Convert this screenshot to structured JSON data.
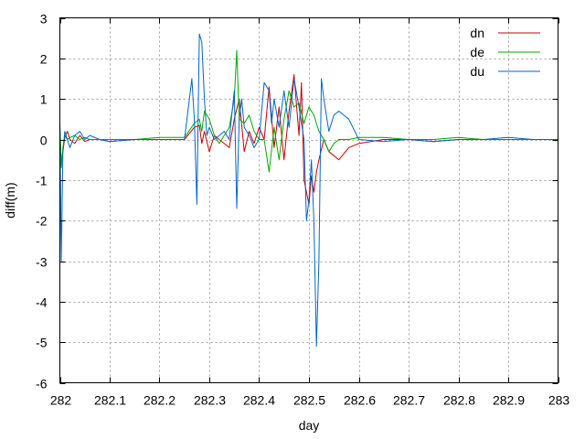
{
  "chart_data": {
    "type": "line",
    "title": "",
    "xlabel": "day",
    "ylabel": "diff(m)",
    "xlim": [
      282,
      283
    ],
    "ylim": [
      -6,
      3
    ],
    "grid": true,
    "legend_position": "top-right",
    "x_ticks": [
      282,
      282.1,
      282.2,
      282.3,
      282.4,
      282.5,
      282.6,
      282.7,
      282.8,
      282.9,
      283
    ],
    "x_tick_labels": [
      "282",
      "282.1",
      "282.2",
      "282.3",
      "282.4",
      "282.5",
      "282.6",
      "282.7",
      "282.8",
      "282.9",
      "283"
    ],
    "y_ticks": [
      3,
      2,
      1,
      0,
      -1,
      -2,
      -3,
      -4,
      -5,
      -6
    ],
    "y_tick_labels": [
      "3",
      "2",
      "1",
      "0",
      "-1",
      "-2",
      "-3",
      "-4",
      "-5",
      "-6"
    ],
    "series": [
      {
        "name": "dn",
        "color": "#cc0000",
        "x": [
          282.0,
          282.003,
          282.006,
          282.01,
          282.015,
          282.02,
          282.03,
          282.04,
          282.05,
          282.06,
          282.08,
          282.1,
          282.15,
          282.2,
          282.25,
          282.27,
          282.28,
          282.285,
          282.29,
          282.3,
          282.31,
          282.32,
          282.34,
          282.35,
          282.36,
          282.37,
          282.38,
          282.39,
          282.4,
          282.41,
          282.42,
          282.43,
          282.44,
          282.45,
          282.46,
          282.47,
          282.48,
          282.485,
          282.49,
          282.5,
          282.505,
          282.51,
          282.515,
          282.52,
          282.53,
          282.54,
          282.55,
          282.56,
          282.58,
          282.6,
          282.65,
          282.7,
          282.75,
          282.8,
          282.85,
          282.9,
          282.95,
          283.0
        ],
        "y": [
          0.2,
          -0.6,
          -0.3,
          0.05,
          0.2,
          0.0,
          -0.1,
          0.1,
          -0.05,
          0.0,
          0.0,
          -0.05,
          0.0,
          0.0,
          0.0,
          0.3,
          0.35,
          -0.1,
          0.2,
          -0.3,
          0.1,
          0.0,
          -0.2,
          0.5,
          1.0,
          -0.3,
          0.2,
          -0.1,
          0.3,
          0.0,
          1.3,
          -0.2,
          0.8,
          -0.5,
          0.7,
          1.6,
          0.1,
          1.4,
          -1.0,
          -1.6,
          -0.9,
          -1.3,
          -0.8,
          -0.5,
          0.0,
          -0.3,
          -0.4,
          -0.5,
          -0.2,
          -0.1,
          0.0,
          0.0,
          -0.05,
          0.0,
          0.0,
          0.0,
          0.0,
          0.0
        ]
      },
      {
        "name": "de",
        "color": "#00aa00",
        "x": [
          282.0,
          282.003,
          282.006,
          282.01,
          282.015,
          282.02,
          282.03,
          282.04,
          282.05,
          282.06,
          282.08,
          282.1,
          282.15,
          282.2,
          282.25,
          282.27,
          282.28,
          282.285,
          282.29,
          282.3,
          282.31,
          282.32,
          282.34,
          282.35,
          282.355,
          282.36,
          282.37,
          282.38,
          282.39,
          282.4,
          282.41,
          282.42,
          282.43,
          282.44,
          282.45,
          282.46,
          282.47,
          282.48,
          282.49,
          282.5,
          282.51,
          282.52,
          282.53,
          282.54,
          282.55,
          282.56,
          282.58,
          282.6,
          282.65,
          282.7,
          282.75,
          282.8,
          282.85,
          282.9,
          282.95,
          283.0
        ],
        "y": [
          0.4,
          -0.7,
          -0.2,
          0.1,
          0.0,
          0.05,
          0.1,
          0.0,
          0.05,
          0.0,
          0.0,
          0.0,
          0.0,
          0.05,
          0.05,
          0.4,
          0.5,
          0.2,
          0.7,
          0.5,
          0.1,
          -0.1,
          0.3,
          1.0,
          2.2,
          0.5,
          0.4,
          0.6,
          0.2,
          0.0,
          0.0,
          -0.8,
          0.3,
          -0.5,
          0.5,
          1.2,
          0.8,
          0.9,
          0.4,
          0.8,
          0.6,
          0.2,
          0.0,
          -0.3,
          -0.1,
          0.0,
          0.0,
          0.05,
          0.05,
          0.0,
          0.0,
          0.05,
          0.0,
          0.0,
          0.0,
          0.0
        ]
      },
      {
        "name": "du",
        "color": "#0066cc",
        "x": [
          282.0,
          282.003,
          282.006,
          282.01,
          282.02,
          282.03,
          282.04,
          282.05,
          282.06,
          282.08,
          282.1,
          282.15,
          282.2,
          282.25,
          282.265,
          282.27,
          282.275,
          282.28,
          282.285,
          282.29,
          282.295,
          282.3,
          282.31,
          282.32,
          282.33,
          282.34,
          282.35,
          282.355,
          282.36,
          282.365,
          282.37,
          282.38,
          282.39,
          282.4,
          282.41,
          282.42,
          282.425,
          282.43,
          282.44,
          282.45,
          282.46,
          282.47,
          282.48,
          282.49,
          282.495,
          282.5,
          282.505,
          282.51,
          282.515,
          282.52,
          282.525,
          282.53,
          282.54,
          282.55,
          282.56,
          282.58,
          282.6,
          282.65,
          282.7,
          282.75,
          282.8,
          282.85,
          282.9,
          282.95,
          283.0
        ],
        "y": [
          0.3,
          -3.0,
          -0.3,
          0.2,
          -0.2,
          0.1,
          0.2,
          0.0,
          0.1,
          0.0,
          -0.05,
          0.0,
          0.0,
          0.0,
          1.5,
          0.5,
          -1.6,
          2.6,
          2.4,
          1.0,
          0.1,
          0.3,
          0.0,
          0.1,
          0.2,
          0.0,
          1.2,
          -1.7,
          0.5,
          1.0,
          0.3,
          0.1,
          -0.2,
          0.0,
          1.4,
          1.2,
          0.4,
          1.0,
          0.3,
          1.2,
          0.3,
          1.5,
          0.8,
          0.0,
          -2.0,
          -1.5,
          -0.5,
          -2.0,
          -5.1,
          -3.0,
          1.5,
          1.0,
          0.2,
          0.6,
          0.7,
          0.5,
          0.0,
          -0.05,
          0.0,
          -0.05,
          0.0,
          0.0,
          0.05,
          0.0,
          0.0
        ]
      }
    ]
  }
}
